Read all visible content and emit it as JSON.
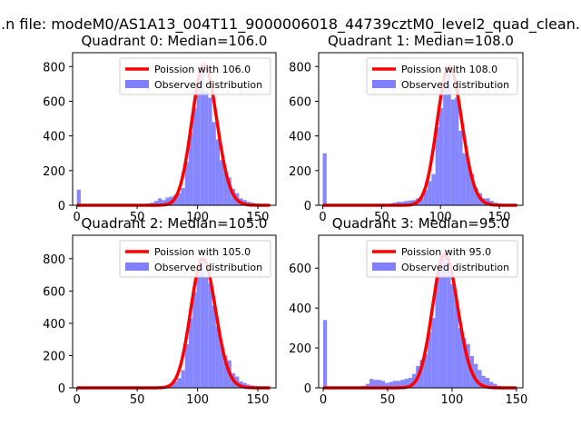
{
  "figure": {
    "suptitle": "...n file: modeM0/AS1A13_004T11_9000006018_44739cztM0_level2_quad_clean..."
  },
  "colors": {
    "fit": "#ff0000",
    "observed": "#8080ff",
    "axis": "#000000"
  },
  "chart_data": [
    {
      "type": "bar",
      "title": "Quadrant 0: Median=106.0",
      "xlabel": "",
      "ylabel": "",
      "xlim": [
        -3.5,
        165
      ],
      "ylim": [
        0,
        880
      ],
      "xticks": [
        0,
        50,
        100,
        150
      ],
      "yticks": [
        0,
        200,
        400,
        600,
        800
      ],
      "bin_width": 3.2,
      "legend": [
        "Poission with 106.0",
        "Observed distribution"
      ],
      "legend_position": "top-right",
      "poisson_mean": 106.0,
      "hist_x": [
        0,
        3.2,
        6.4,
        9.6,
        12.8,
        16,
        19.2,
        22.4,
        25.6,
        28.8,
        32,
        35.2,
        38.4,
        41.6,
        44.8,
        48,
        51.2,
        54.4,
        57.6,
        60.8,
        64,
        67.2,
        70.4,
        73.6,
        76.8,
        80,
        83.2,
        86.4,
        89.6,
        92.8,
        96,
        99.2,
        102.4,
        105.6,
        108.8,
        112,
        115.2,
        118.4,
        121.6,
        124.8,
        128,
        131.2,
        134.4,
        137.6,
        140.8,
        144,
        147.2,
        150.4,
        153.6,
        156.8,
        160
      ],
      "hist_y": [
        90,
        5,
        0,
        0,
        0,
        0,
        0,
        0,
        0,
        0,
        0,
        0,
        0,
        0,
        0,
        0,
        5,
        8,
        10,
        15,
        25,
        40,
        30,
        45,
        50,
        60,
        70,
        100,
        250,
        420,
        560,
        700,
        810,
        660,
        620,
        480,
        380,
        260,
        200,
        160,
        95,
        70,
        40,
        30,
        20,
        15,
        10,
        8,
        5,
        3,
        2
      ]
    },
    {
      "type": "bar",
      "title": "Quadrant 1: Median=108.0",
      "xlabel": "",
      "ylabel": "",
      "xlim": [
        -3.5,
        170
      ],
      "ylim": [
        0,
        880
      ],
      "xticks": [
        0,
        50,
        100,
        150
      ],
      "yticks": [
        0,
        200,
        400,
        600,
        800
      ],
      "bin_width": 3.3,
      "legend": [
        "Poission with 108.0",
        "Observed distribution"
      ],
      "legend_position": "top-right",
      "poisson_mean": 108.0,
      "hist_x": [
        0,
        3.3,
        6.6,
        9.9,
        13.2,
        16.5,
        19.8,
        23.1,
        26.4,
        29.7,
        33,
        36.3,
        39.6,
        42.9,
        46.2,
        49.5,
        52.8,
        56.1,
        59.4,
        62.7,
        66,
        69.3,
        72.6,
        75.9,
        79.2,
        82.5,
        85.8,
        89.1,
        92.4,
        95.7,
        99,
        102.3,
        105.6,
        108.9,
        112.2,
        115.5,
        118.8,
        122.1,
        125.4,
        128.7,
        132,
        135.3,
        138.6,
        141.9,
        145.2,
        148.5,
        151.8,
        155.1,
        158.4,
        161.7,
        165
      ],
      "hist_y": [
        300,
        0,
        0,
        0,
        0,
        0,
        0,
        0,
        0,
        0,
        0,
        0,
        0,
        0,
        0,
        0,
        5,
        10,
        15,
        20,
        20,
        25,
        28,
        30,
        40,
        45,
        90,
        140,
        180,
        450,
        560,
        720,
        800,
        610,
        620,
        430,
        300,
        250,
        180,
        100,
        70,
        40,
        40,
        25,
        15,
        10,
        8,
        5,
        3,
        2,
        1
      ]
    },
    {
      "type": "bar",
      "title": "Quadrant 2: Median=105.0",
      "xlabel": "",
      "ylabel": "",
      "xlim": [
        -3.5,
        165
      ],
      "ylim": [
        0,
        945
      ],
      "xticks": [
        0,
        50,
        100,
        150
      ],
      "yticks": [
        0,
        200,
        400,
        600,
        800
      ],
      "bin_width": 3.2,
      "legend": [
        "Poission with 105.0",
        "Observed distribution"
      ],
      "legend_position": "top-right",
      "poisson_mean": 105.0,
      "hist_x": [
        0,
        3.2,
        6.4,
        9.6,
        12.8,
        16,
        19.2,
        22.4,
        25.6,
        28.8,
        32,
        35.2,
        38.4,
        41.6,
        44.8,
        48,
        51.2,
        54.4,
        57.6,
        60.8,
        64,
        67.2,
        70.4,
        73.6,
        76.8,
        80,
        83.2,
        86.4,
        89.6,
        92.8,
        96,
        99.2,
        102.4,
        105.6,
        108.8,
        112,
        115.2,
        118.4,
        121.6,
        124.8,
        128,
        131.2,
        134.4,
        137.6,
        140.8,
        144,
        147.2,
        150.4,
        153.6,
        156.8,
        160
      ],
      "hist_y": [
        0,
        0,
        0,
        0,
        0,
        0,
        0,
        0,
        0,
        0,
        0,
        0,
        0,
        0,
        0,
        0,
        0,
        0,
        0,
        0,
        0,
        2,
        3,
        10,
        20,
        40,
        60,
        110,
        270,
        430,
        590,
        760,
        800,
        690,
        650,
        510,
        380,
        270,
        200,
        170,
        90,
        70,
        40,
        30,
        20,
        15,
        10,
        8,
        5,
        3,
        2
      ]
    },
    {
      "type": "bar",
      "title": "Quadrant 3: Median=95.0",
      "xlabel": "",
      "ylabel": "",
      "xlim": [
        -3.5,
        155
      ],
      "ylim": [
        0,
        765
      ],
      "xticks": [
        0,
        50,
        100,
        150
      ],
      "yticks": [
        0,
        200,
        400,
        600
      ],
      "bin_width": 3.0,
      "legend": [
        "Poission with 95.0",
        "Observed distribution"
      ],
      "legend_position": "top-right",
      "poisson_mean": 95.0,
      "hist_x": [
        0,
        3,
        6,
        9,
        12,
        15,
        18,
        21,
        24,
        27,
        30,
        33,
        36,
        39,
        42,
        45,
        48,
        51,
        54,
        57,
        60,
        63,
        66,
        69,
        72,
        75,
        78,
        81,
        84,
        87,
        90,
        93,
        96,
        99,
        102,
        105,
        108,
        111,
        114,
        117,
        120,
        123,
        126,
        129,
        132,
        135,
        138,
        141,
        144,
        147
      ],
      "hist_y": [
        340,
        0,
        0,
        0,
        0,
        0,
        0,
        0,
        0,
        0,
        10,
        20,
        45,
        40,
        40,
        35,
        25,
        30,
        35,
        35,
        40,
        45,
        50,
        70,
        110,
        140,
        170,
        280,
        350,
        590,
        660,
        670,
        600,
        520,
        440,
        300,
        250,
        220,
        160,
        120,
        90,
        60,
        50,
        30,
        20,
        10,
        5,
        3,
        2,
        1
      ]
    }
  ]
}
